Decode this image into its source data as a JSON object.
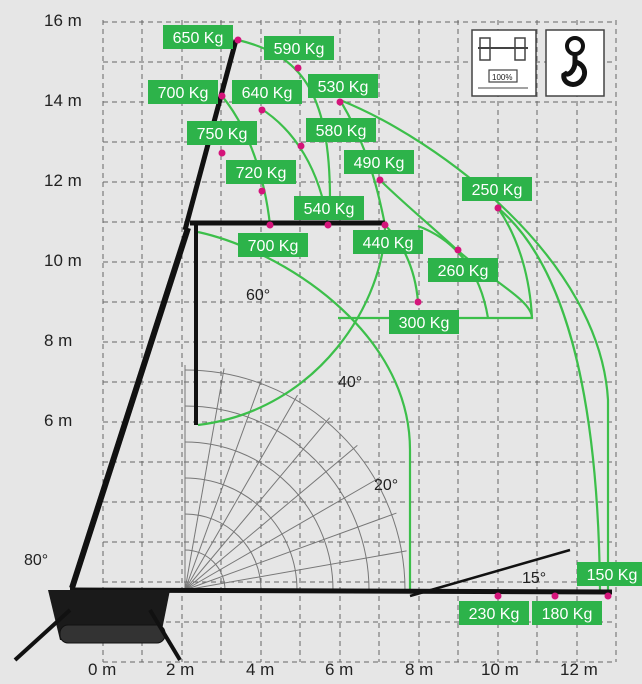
{
  "colors": {
    "background": "#e6e6e6",
    "label_green": "#2db34a",
    "curve_green": "#3cbf4a",
    "point_magenta": "#d4147a",
    "grid": "#666666",
    "crane": "#111111"
  },
  "axes": {
    "y_ticks": [
      "16 m",
      "14 m",
      "12 m",
      "10 m",
      "8 m",
      "6 m"
    ],
    "x_ticks": [
      "0 m",
      "2 m",
      "4 m",
      "6 m",
      "8 m",
      "10 m",
      "12 m"
    ]
  },
  "angles": {
    "a80": "80°",
    "a60": "60°",
    "a40": "40°",
    "a20": "20°",
    "a15": "15°"
  },
  "loads": [
    {
      "text": "650 Kg"
    },
    {
      "text": "590 Kg"
    },
    {
      "text": "700 Kg"
    },
    {
      "text": "640 Kg"
    },
    {
      "text": "530 Kg"
    },
    {
      "text": "750 Kg"
    },
    {
      "text": "580 Kg"
    },
    {
      "text": "720 Kg"
    },
    {
      "text": "490 Kg"
    },
    {
      "text": "250 Kg"
    },
    {
      "text": "540 Kg"
    },
    {
      "text": "700 Kg"
    },
    {
      "text": "440 Kg"
    },
    {
      "text": "260 Kg"
    },
    {
      "text": "300 Kg"
    },
    {
      "text": "150 Kg"
    },
    {
      "text": "230 Kg"
    },
    {
      "text": "180 Kg"
    }
  ],
  "icons": {
    "outrigger": "outrigger-100-icon",
    "outrigger_text": "100%",
    "hook": "crane-hook-icon"
  }
}
